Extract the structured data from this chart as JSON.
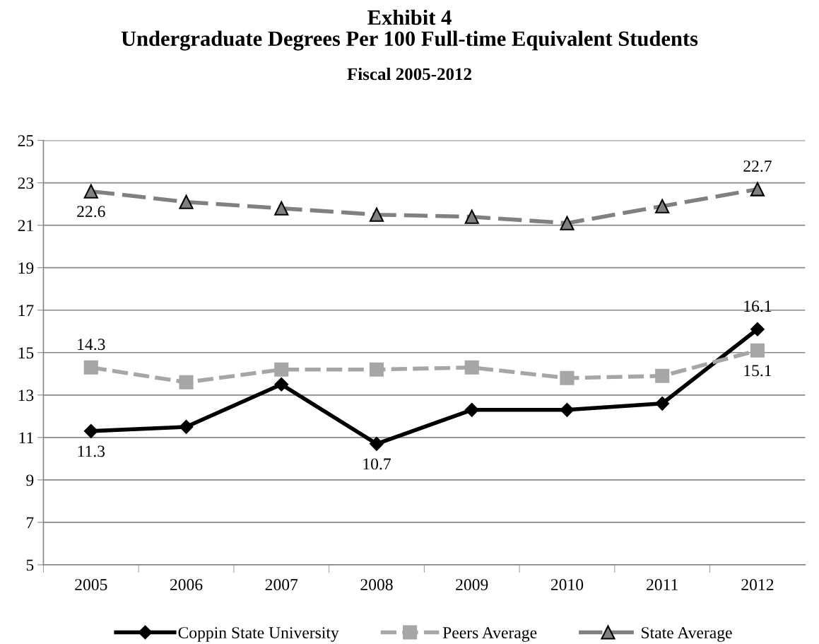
{
  "chart_data": {
    "type": "line",
    "title": "Exhibit 4\nUndergraduate Degrees Per 100 Full-time Equivalent Students",
    "subtitle": "Fiscal 2005-2012",
    "categories": [
      "2005",
      "2006",
      "2007",
      "2008",
      "2009",
      "2010",
      "2011",
      "2012"
    ],
    "series": [
      {
        "name": "Coppin State University",
        "color": "#000000",
        "marker": "diamond",
        "line_style": "solid",
        "values": [
          11.3,
          11.5,
          13.5,
          10.7,
          12.3,
          12.3,
          12.6,
          16.1
        ],
        "value_labels": [
          "11.3",
          null,
          null,
          "10.7",
          null,
          null,
          null,
          "16.1"
        ]
      },
      {
        "name": "Peers Average",
        "color": "#a6a6a6",
        "marker": "square",
        "line_style": "dashed",
        "values": [
          14.3,
          13.6,
          14.2,
          14.2,
          14.3,
          13.8,
          13.9,
          15.1
        ],
        "value_labels": [
          "14.3",
          null,
          null,
          null,
          null,
          null,
          null,
          "15.1"
        ]
      },
      {
        "name": "State Average",
        "color": "#808080",
        "marker": "triangle",
        "line_style": "dashed",
        "values": [
          22.6,
          22.1,
          21.8,
          21.5,
          21.4,
          21.1,
          21.9,
          22.7
        ],
        "value_labels": [
          "22.6",
          null,
          null,
          null,
          null,
          null,
          null,
          "22.7"
        ]
      }
    ],
    "ylim": [
      5,
      25
    ],
    "yticks": [
      5,
      7,
      9,
      11,
      13,
      15,
      17,
      19,
      21,
      23,
      25
    ],
    "grid": "y",
    "legend": "bottom"
  }
}
